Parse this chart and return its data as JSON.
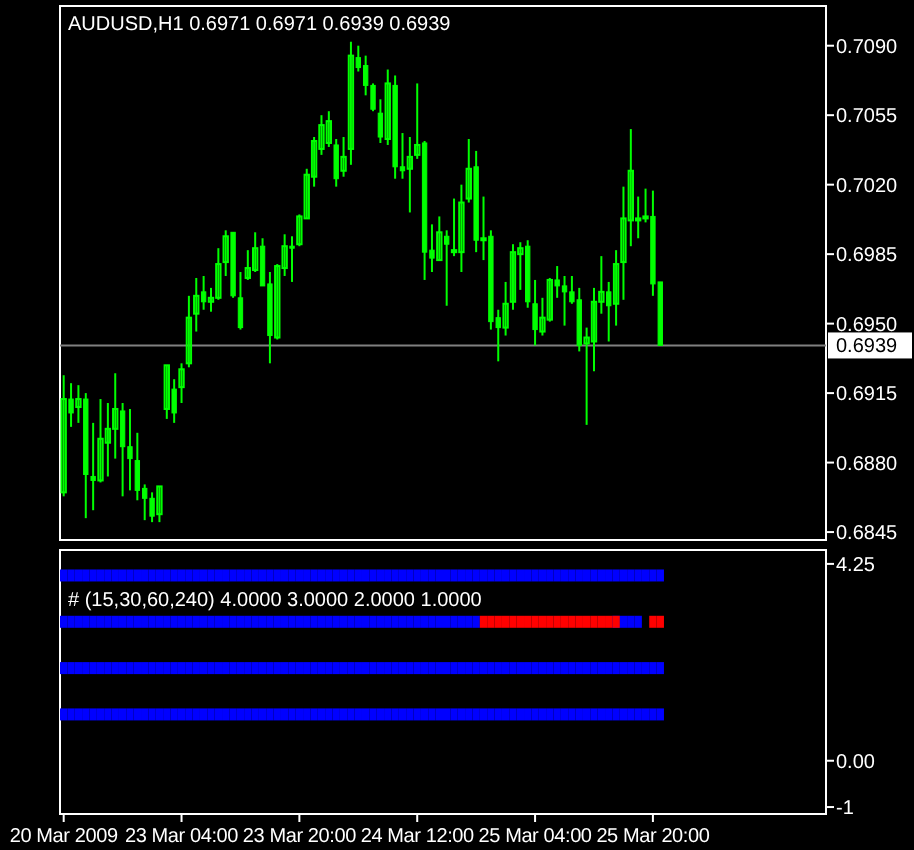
{
  "chart_data": [
    {
      "type": "candlestick",
      "title": "AUDUSD,H1  0.6971 0.6971 0.6939 0.6939",
      "color": "#00ff00",
      "tick_labels": "y",
      "categories": [
        null,
        null,
        null,
        null,
        null,
        null,
        null,
        null,
        null,
        null,
        null,
        null,
        null,
        null,
        null,
        null,
        null,
        null,
        null,
        null,
        null,
        null,
        null,
        null,
        null,
        null,
        null,
        null,
        null,
        null,
        null,
        null,
        null,
        null,
        null,
        null,
        null,
        null,
        null,
        null,
        null,
        null,
        null,
        null,
        null,
        null,
        null,
        null,
        null,
        null,
        null,
        null,
        null,
        null,
        null,
        null,
        null,
        null,
        null,
        null,
        null,
        null,
        null,
        null,
        null,
        null,
        null,
        null,
        null,
        null,
        null,
        null,
        null,
        null,
        null,
        null,
        null,
        null,
        null,
        null,
        null,
        null,
        null,
        null,
        null,
        null,
        null,
        null,
        null,
        null,
        null,
        null,
        null,
        null,
        null,
        null,
        null,
        null,
        null,
        null,
        null,
        null,
        null,
        null
      ],
      "ohlc": [
        [
          0.6865,
          0.6924,
          0.6863,
          0.6912
        ],
        [
          0.6912,
          0.692,
          0.6898,
          0.6905
        ],
        [
          0.6908,
          0.6919,
          0.69,
          0.6912
        ],
        [
          0.6912,
          0.6915,
          0.6852,
          0.6874
        ],
        [
          0.6873,
          0.69,
          0.6856,
          0.6871
        ],
        [
          0.6871,
          0.6912,
          0.687,
          0.6892
        ],
        [
          0.689,
          0.691,
          0.6873,
          0.6897
        ],
        [
          0.6897,
          0.6925,
          0.6882,
          0.6907
        ],
        [
          0.6906,
          0.691,
          0.6863,
          0.6888
        ],
        [
          0.6888,
          0.6907,
          0.6866,
          0.6882
        ],
        [
          0.6881,
          0.6895,
          0.6861,
          0.6866
        ],
        [
          0.6867,
          0.6869,
          0.6851,
          0.6862
        ],
        [
          0.6862,
          0.6865,
          0.685,
          0.6853
        ],
        [
          0.6854,
          0.6868,
          0.685,
          0.6868
        ],
        [
          0.6907,
          0.6929,
          0.6902,
          0.6929
        ],
        [
          0.6917,
          0.6922,
          0.69,
          0.6905
        ],
        [
          0.6918,
          0.693,
          0.691,
          0.6927
        ],
        [
          0.693,
          0.6964,
          0.6928,
          0.6953
        ],
        [
          0.6955,
          0.6973,
          0.6946,
          0.6964
        ],
        [
          0.6966,
          0.6974,
          0.6957,
          0.6961
        ],
        [
          0.6961,
          0.6968,
          0.6956,
          0.6963
        ],
        [
          0.6963,
          0.6988,
          0.6962,
          0.698
        ],
        [
          0.6981,
          0.6997,
          0.6974,
          0.6994
        ],
        [
          0.6996,
          0.6996,
          0.6963,
          0.6964
        ],
        [
          0.6963,
          0.6976,
          0.6947,
          0.6948
        ],
        [
          0.6973,
          0.6987,
          0.6972,
          0.6978
        ],
        [
          0.6977,
          0.6996,
          0.6976,
          0.6988
        ],
        [
          0.6989,
          0.6993,
          0.6969,
          0.6969
        ],
        [
          0.697,
          0.6976,
          0.693,
          0.6944
        ],
        [
          0.6943,
          0.698,
          0.6942,
          0.6979
        ],
        [
          0.6978,
          0.6995,
          0.6974,
          0.6989
        ],
        [
          0.6989,
          0.6994,
          0.6971,
          0.6988
        ],
        [
          0.699,
          0.7005,
          0.6989,
          0.7004
        ],
        [
          0.7003,
          0.7028,
          0.7003,
          0.7025
        ],
        [
          0.7024,
          0.7044,
          0.7019,
          0.7042
        ],
        [
          0.7038,
          0.7055,
          0.7035,
          0.705
        ],
        [
          0.7041,
          0.7057,
          0.7039,
          0.7052
        ],
        [
          0.704,
          0.7043,
          0.7019,
          0.7023
        ],
        [
          0.7027,
          0.7044,
          0.7024,
          0.7034
        ],
        [
          0.7038,
          0.7092,
          0.703,
          0.7085
        ],
        [
          0.7084,
          0.709,
          0.7077,
          0.7079
        ],
        [
          0.708,
          0.7085,
          0.7065,
          0.707
        ],
        [
          0.707,
          0.7071,
          0.7057,
          0.7058
        ],
        [
          0.7056,
          0.7063,
          0.7041,
          0.7044
        ],
        [
          0.7043,
          0.7078,
          0.704,
          0.7071
        ],
        [
          0.707,
          0.7075,
          0.7023,
          0.7029
        ],
        [
          0.7029,
          0.7046,
          0.7023,
          0.7027
        ],
        [
          0.7028,
          0.7044,
          0.7006,
          0.7034
        ],
        [
          0.7035,
          0.7071,
          0.7033,
          0.704
        ],
        [
          0.7041,
          0.7042,
          0.6972,
          0.6986
        ],
        [
          0.6987,
          0.7,
          0.6976,
          0.6983
        ],
        [
          0.6982,
          0.7004,
          0.6982,
          0.6996
        ],
        [
          0.6994,
          0.6997,
          0.6959,
          0.699
        ],
        [
          0.6986,
          0.7013,
          0.6984,
          0.6987
        ],
        [
          0.6986,
          0.702,
          0.6976,
          0.7011
        ],
        [
          0.7013,
          0.7043,
          0.7011,
          0.7028
        ],
        [
          0.7029,
          0.7037,
          0.6986,
          0.6992
        ],
        [
          0.6992,
          0.7014,
          0.6982,
          0.6993
        ],
        [
          0.6994,
          0.6997,
          0.6947,
          0.6951
        ],
        [
          0.6953,
          0.6957,
          0.6931,
          0.6948
        ],
        [
          0.6948,
          0.6971,
          0.6944,
          0.696
        ],
        [
          0.6961,
          0.699,
          0.6957,
          0.6986
        ],
        [
          0.6985,
          0.6991,
          0.6967,
          0.6988
        ],
        [
          0.6989,
          0.6992,
          0.6958,
          0.6961
        ],
        [
          0.696,
          0.6972,
          0.6939,
          0.6947
        ],
        [
          0.6946,
          0.6963,
          0.6944,
          0.6953
        ],
        [
          0.6952,
          0.6973,
          0.6951,
          0.6972
        ],
        [
          0.6972,
          0.6979,
          0.6963,
          0.6969
        ],
        [
          0.6969,
          0.6974,
          0.6949,
          0.6966
        ],
        [
          0.6966,
          0.6974,
          0.696,
          0.6961
        ],
        [
          0.6962,
          0.6968,
          0.6936,
          0.6939
        ],
        [
          0.694,
          0.6948,
          0.6899,
          0.6943
        ],
        [
          0.6941,
          0.6968,
          0.6926,
          0.6961
        ],
        [
          0.6961,
          0.6984,
          0.6955,
          0.6966
        ],
        [
          0.6966,
          0.6971,
          0.6941,
          0.6959
        ],
        [
          0.696,
          0.6987,
          0.6949,
          0.698
        ],
        [
          0.6981,
          0.7019,
          0.6962,
          0.7003
        ],
        [
          0.7002,
          0.7048,
          0.6989,
          0.7027
        ],
        [
          0.7002,
          0.7014,
          0.6993,
          0.7003
        ],
        [
          0.7003,
          0.7018,
          0.7001,
          0.7004
        ],
        [
          0.7004,
          0.7017,
          0.6964,
          0.697
        ],
        [
          0.6971,
          0.6971,
          0.6939,
          0.6939
        ],
        null,
        null,
        null,
        null,
        null,
        null,
        null,
        null,
        null,
        null,
        null,
        null,
        null,
        null,
        null,
        null,
        null,
        null,
        null,
        null,
        null,
        null
      ],
      "ylim": [
        0.6841,
        0.711
      ],
      "yticks": [
        {
          "value": 0.709,
          "label": "0.7090"
        },
        {
          "value": 0.7055,
          "label": "0.7055"
        },
        {
          "value": 0.702,
          "label": "0.7020"
        },
        {
          "value": 0.6985,
          "label": "0.6985"
        },
        {
          "value": 0.695,
          "label": "0.6950"
        },
        {
          "value": 0.6915,
          "label": "0.6915"
        },
        {
          "value": 0.688,
          "label": "0.6880"
        },
        {
          "value": 0.6845,
          "label": "0.6845"
        }
      ],
      "ref_lines": [
        {
          "axis": "y",
          "value": 0.6939,
          "label": "0.6939",
          "color": "#808080"
        }
      ]
    },
    {
      "type": "scatter",
      "title": "# (15,30,60,240) 4.0000 3.0000 2.0000 1.0000",
      "marker": "square",
      "categories": [
        "20 Mar 2009",
        null,
        null,
        null,
        null,
        null,
        null,
        null,
        null,
        null,
        null,
        null,
        null,
        null,
        null,
        null,
        "23 Mar 04:00",
        null,
        null,
        null,
        null,
        null,
        null,
        null,
        null,
        null,
        null,
        null,
        null,
        null,
        null,
        null,
        "23 Mar 20:00",
        null,
        null,
        null,
        null,
        null,
        null,
        null,
        null,
        null,
        null,
        null,
        null,
        null,
        null,
        null,
        "24 Mar 12:00",
        null,
        null,
        null,
        null,
        null,
        null,
        null,
        null,
        null,
        null,
        null,
        null,
        null,
        null,
        null,
        "25 Mar 04:00",
        null,
        null,
        null,
        null,
        null,
        null,
        null,
        null,
        null,
        null,
        null,
        null,
        null,
        null,
        null,
        "25 Mar 20:00",
        null,
        null,
        null,
        null,
        null,
        null,
        null,
        null,
        null,
        null,
        null,
        null,
        null,
        null,
        null,
        null,
        null,
        null,
        null,
        null,
        null,
        null,
        null
      ],
      "ylim": [
        -1.15,
        4.55
      ],
      "yticks": [
        4.25,
        {
          "value": 0,
          "label": "0.00"
        },
        -1
      ],
      "series": [
        {
          "color": "#0000ff",
          "values": [
            4,
            4,
            4,
            4,
            4,
            4,
            4,
            4,
            4,
            4,
            4,
            4,
            4,
            4,
            4,
            4,
            4,
            4,
            4,
            4,
            4,
            4,
            4,
            4,
            4,
            4,
            4,
            4,
            4,
            4,
            4,
            4,
            4,
            4,
            4,
            4,
            4,
            4,
            4,
            4,
            4,
            4,
            4,
            4,
            4,
            4,
            4,
            4,
            4,
            4,
            4,
            4,
            4,
            4,
            4,
            4,
            4,
            4,
            4,
            4,
            4,
            4,
            4,
            4,
            4,
            4,
            4,
            4,
            4,
            4,
            4,
            4,
            4,
            4,
            4,
            4,
            4,
            4,
            4,
            4,
            4,
            4,
            null,
            null,
            null,
            null,
            null,
            null,
            null,
            null,
            null,
            null,
            null,
            null,
            null,
            null,
            null,
            null,
            null,
            null,
            null,
            null,
            null,
            null
          ]
        },
        {
          "color": "#0000ff",
          "values": [
            3,
            3,
            3,
            3,
            3,
            3,
            3,
            3,
            3,
            3,
            3,
            3,
            3,
            3,
            3,
            3,
            3,
            3,
            3,
            3,
            3,
            3,
            3,
            3,
            3,
            3,
            3,
            3,
            3,
            3,
            3,
            3,
            3,
            3,
            3,
            3,
            3,
            3,
            3,
            3,
            3,
            3,
            3,
            3,
            3,
            3,
            3,
            3,
            3,
            3,
            3,
            3,
            3,
            3,
            3,
            3,
            3,
            null,
            null,
            null,
            null,
            null,
            null,
            null,
            null,
            null,
            null,
            null,
            null,
            null,
            null,
            null,
            null,
            null,
            null,
            3,
            3,
            3,
            3,
            null,
            null,
            null,
            null,
            null,
            null,
            null,
            null,
            null,
            null,
            null,
            null,
            null,
            null,
            null,
            null,
            null,
            null,
            null,
            null,
            null,
            null,
            null,
            null,
            null
          ]
        },
        {
          "color": "#ff0000",
          "values": [
            null,
            null,
            null,
            null,
            null,
            null,
            null,
            null,
            null,
            null,
            null,
            null,
            null,
            null,
            null,
            null,
            null,
            null,
            null,
            null,
            null,
            null,
            null,
            null,
            null,
            null,
            null,
            null,
            null,
            null,
            null,
            null,
            null,
            null,
            null,
            null,
            null,
            null,
            null,
            null,
            null,
            null,
            null,
            null,
            null,
            null,
            null,
            null,
            null,
            null,
            null,
            null,
            null,
            null,
            null,
            null,
            null,
            3,
            3,
            3,
            3,
            3,
            3,
            3,
            3,
            3,
            3,
            3,
            3,
            3,
            3,
            3,
            3,
            3,
            3,
            3,
            null,
            null,
            null,
            null,
            3,
            3,
            null,
            null,
            null,
            null,
            null,
            null,
            null,
            null,
            null,
            null,
            null,
            null,
            null,
            null,
            null,
            null,
            null,
            null,
            null,
            null,
            null,
            null
          ]
        },
        {
          "color": "#0000ff",
          "values": [
            2,
            2,
            2,
            2,
            2,
            2,
            2,
            2,
            2,
            2,
            2,
            2,
            2,
            2,
            2,
            2,
            2,
            2,
            2,
            2,
            2,
            2,
            2,
            2,
            2,
            2,
            2,
            2,
            2,
            2,
            2,
            2,
            2,
            2,
            2,
            2,
            2,
            2,
            2,
            2,
            2,
            2,
            2,
            2,
            2,
            2,
            2,
            2,
            2,
            2,
            2,
            2,
            2,
            2,
            2,
            2,
            2,
            2,
            2,
            2,
            2,
            2,
            2,
            2,
            2,
            2,
            2,
            2,
            2,
            2,
            2,
            2,
            2,
            2,
            2,
            2,
            2,
            2,
            2,
            2,
            2,
            2,
            null,
            null,
            null,
            null,
            null,
            null,
            null,
            null,
            null,
            null,
            null,
            null,
            null,
            null,
            null,
            null,
            null,
            null,
            null,
            null,
            null,
            null
          ]
        },
        {
          "color": "#0000ff",
          "values": [
            1,
            1,
            1,
            1,
            1,
            1,
            1,
            1,
            1,
            1,
            1,
            1,
            1,
            1,
            1,
            1,
            1,
            1,
            1,
            1,
            1,
            1,
            1,
            1,
            1,
            1,
            1,
            1,
            1,
            1,
            1,
            1,
            1,
            1,
            1,
            1,
            1,
            1,
            1,
            1,
            1,
            1,
            1,
            1,
            1,
            1,
            1,
            1,
            1,
            1,
            1,
            1,
            1,
            1,
            1,
            1,
            1,
            1,
            1,
            1,
            1,
            1,
            1,
            1,
            1,
            1,
            1,
            1,
            1,
            1,
            1,
            1,
            1,
            1,
            1,
            1,
            1,
            1,
            1,
            1,
            1,
            1,
            null,
            null,
            null,
            null,
            null,
            null,
            null,
            null,
            null,
            null,
            null,
            null,
            null,
            null,
            null,
            null,
            null,
            null,
            null,
            null,
            null,
            null
          ]
        }
      ]
    }
  ]
}
